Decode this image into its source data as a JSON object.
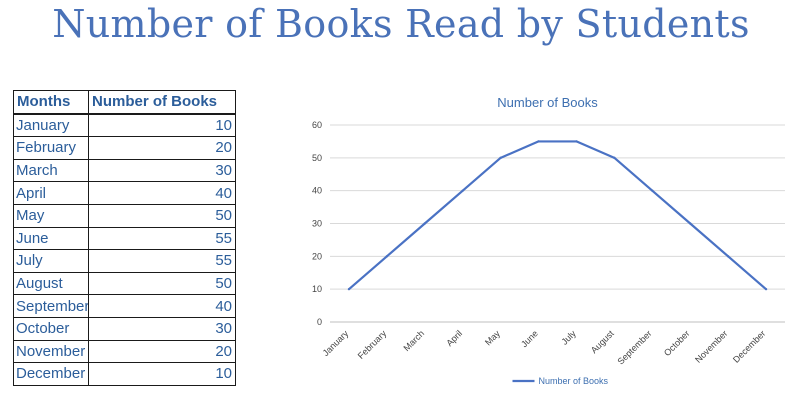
{
  "title": "Number of Books Read by Students",
  "table": {
    "headers": [
      "Months",
      "Number of Books"
    ],
    "rows": [
      {
        "month": "January",
        "value": "10"
      },
      {
        "month": "February",
        "value": "20"
      },
      {
        "month": "March",
        "value": "30"
      },
      {
        "month": "April",
        "value": "40"
      },
      {
        "month": "May",
        "value": "50"
      },
      {
        "month": "June",
        "value": "55"
      },
      {
        "month": "July",
        "value": "55"
      },
      {
        "month": "August",
        "value": "50"
      },
      {
        "month": "September",
        "value": "40"
      },
      {
        "month": "October",
        "value": "30"
      },
      {
        "month": "November",
        "value": "20"
      },
      {
        "month": "December",
        "value": "10"
      }
    ]
  },
  "chart_data": {
    "type": "line",
    "title": "Number of Books",
    "categories": [
      "January",
      "February",
      "March",
      "April",
      "May",
      "June",
      "July",
      "August",
      "September",
      "October",
      "November",
      "December"
    ],
    "series": [
      {
        "name": "Number of Books",
        "values": [
          10,
          20,
          30,
          40,
          50,
          55,
          55,
          50,
          40,
          30,
          20,
          10
        ],
        "color": "#4a72c4"
      }
    ],
    "ylim": [
      0,
      60
    ],
    "yticks": [
      0,
      10,
      20,
      30,
      40,
      50,
      60
    ],
    "grid": true,
    "legend": "bottom"
  }
}
